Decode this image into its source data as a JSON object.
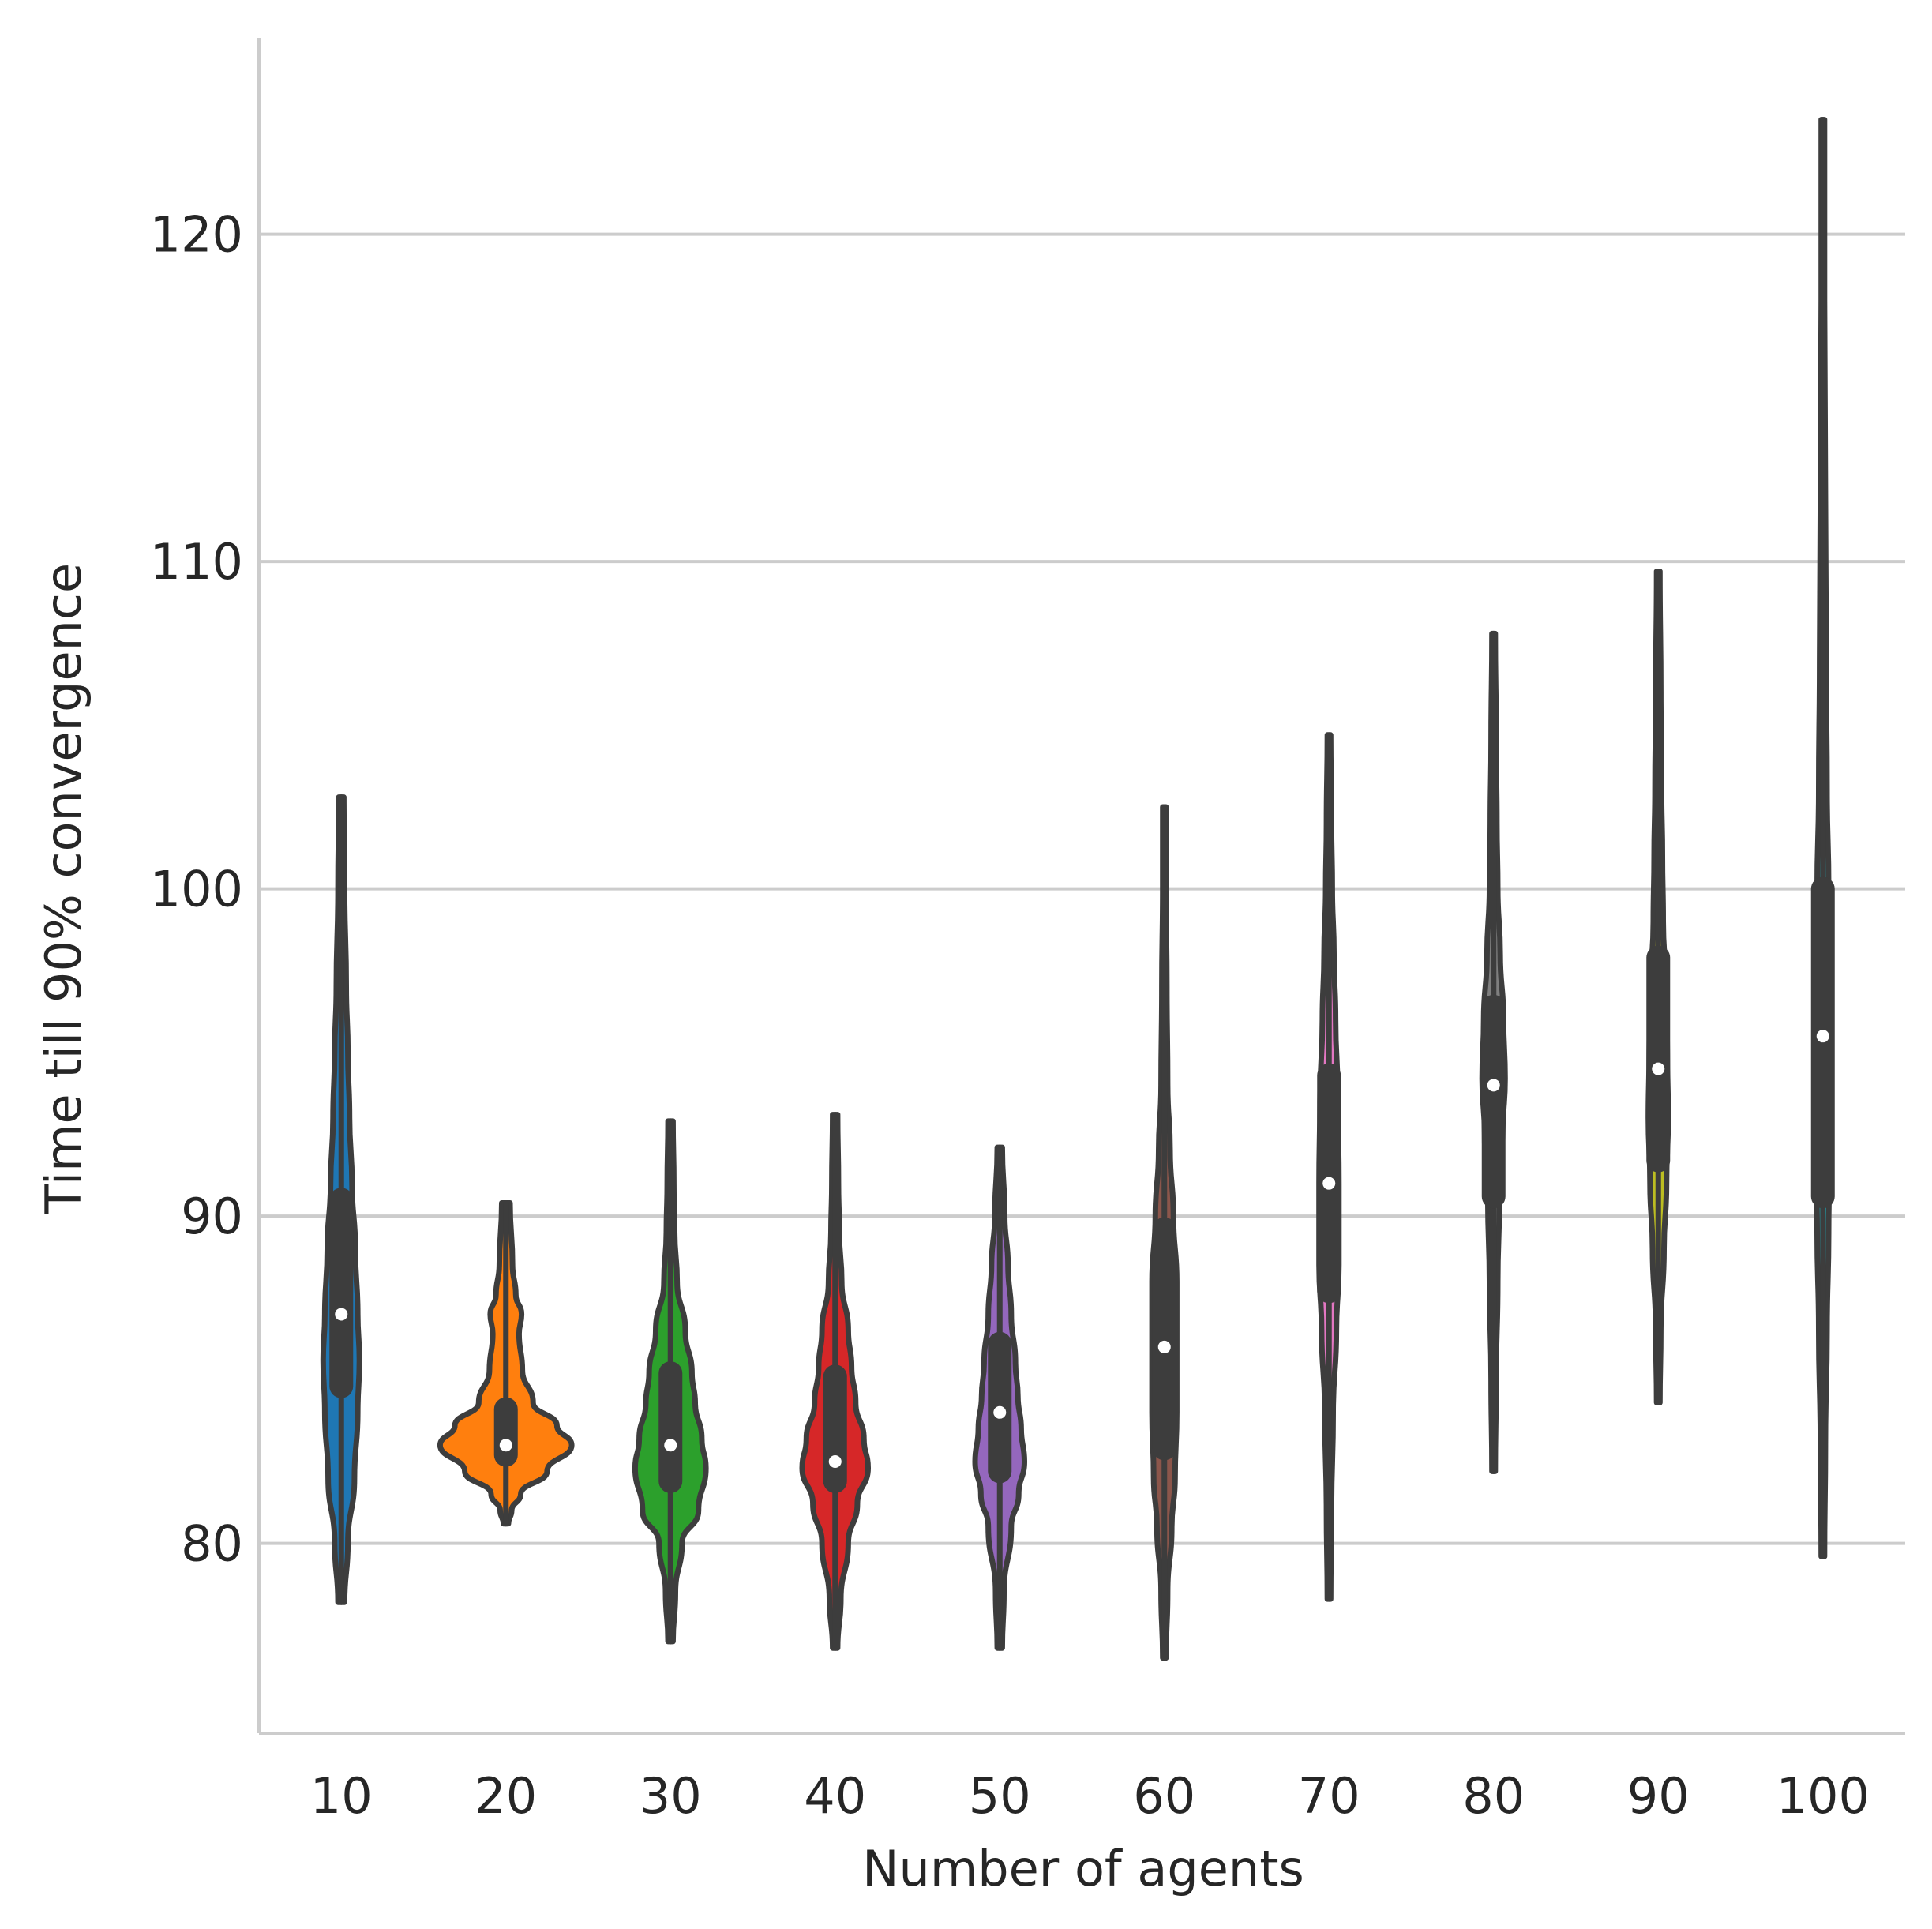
{
  "chart_data": {
    "type": "violin",
    "xlabel": "Number of agents",
    "ylabel": "Time till 90% convergence",
    "ylim": [
      74.2,
      126
    ],
    "yticks": [
      80,
      90,
      100,
      110,
      120
    ],
    "grid": "y",
    "categories": [
      "10",
      "20",
      "30",
      "40",
      "50",
      "60",
      "70",
      "80",
      "90",
      "100"
    ],
    "series": [
      {
        "category": "10",
        "color": "#1f77b4",
        "min": 78.2,
        "q1": 84.8,
        "median": 87.0,
        "q3": 90.5,
        "max": 102.8,
        "density": [
          [
            78.2,
            0.04
          ],
          [
            80,
            0.08
          ],
          [
            82,
            0.16
          ],
          [
            84,
            0.2
          ],
          [
            85.6,
            0.22
          ],
          [
            87,
            0.2
          ],
          [
            89,
            0.17
          ],
          [
            91,
            0.13
          ],
          [
            93,
            0.1
          ],
          [
            95,
            0.08
          ],
          [
            97,
            0.06
          ],
          [
            100,
            0.04
          ],
          [
            102.8,
            0.03
          ]
        ]
      },
      {
        "category": "20",
        "color": "#ff7f0e",
        "min": 80.6,
        "q1": 82.7,
        "median": 83.0,
        "q3": 84.1,
        "max": 90.4,
        "density": [
          [
            80.6,
            0.03
          ],
          [
            81,
            0.07
          ],
          [
            81.5,
            0.18
          ],
          [
            82.2,
            0.5
          ],
          [
            83,
            0.8
          ],
          [
            83.6,
            0.62
          ],
          [
            84.3,
            0.33
          ],
          [
            85.3,
            0.2
          ],
          [
            86.4,
            0.16
          ],
          [
            87,
            0.19
          ],
          [
            87.6,
            0.12
          ],
          [
            88.5,
            0.08
          ],
          [
            90.4,
            0.05
          ]
        ]
      },
      {
        "category": "30",
        "color": "#2ca02c",
        "min": 77.0,
        "q1": 81.9,
        "median": 83.0,
        "q3": 85.2,
        "max": 92.9,
        "density": [
          [
            77,
            0.03
          ],
          [
            78.5,
            0.06
          ],
          [
            80,
            0.14
          ],
          [
            81,
            0.34
          ],
          [
            82.3,
            0.43
          ],
          [
            83.2,
            0.38
          ],
          [
            84.3,
            0.3
          ],
          [
            85.2,
            0.26
          ],
          [
            86.5,
            0.18
          ],
          [
            88,
            0.08
          ],
          [
            89.5,
            0.05
          ],
          [
            91,
            0.04
          ],
          [
            92.9,
            0.03
          ]
        ]
      },
      {
        "category": "40",
        "color": "#d62728",
        "min": 76.8,
        "q1": 81.9,
        "median": 82.5,
        "q3": 85.1,
        "max": 93.1,
        "density": [
          [
            76.8,
            0.03
          ],
          [
            78.3,
            0.07
          ],
          [
            80,
            0.16
          ],
          [
            81.2,
            0.27
          ],
          [
            82.3,
            0.4
          ],
          [
            83.2,
            0.35
          ],
          [
            84.3,
            0.25
          ],
          [
            85.4,
            0.2
          ],
          [
            86.5,
            0.16
          ],
          [
            88,
            0.08
          ],
          [
            89.5,
            0.05
          ],
          [
            91,
            0.04
          ],
          [
            93.1,
            0.03
          ]
        ]
      },
      {
        "category": "50",
        "color": "#9467bd",
        "min": 76.8,
        "q1": 82.2,
        "median": 84.0,
        "q3": 86.1,
        "max": 92.1,
        "density": [
          [
            76.8,
            0.03
          ],
          [
            78.5,
            0.05
          ],
          [
            80.5,
            0.14
          ],
          [
            81.5,
            0.23
          ],
          [
            82.5,
            0.3
          ],
          [
            83.5,
            0.26
          ],
          [
            84.5,
            0.22
          ],
          [
            85.5,
            0.19
          ],
          [
            87,
            0.14
          ],
          [
            88.5,
            0.1
          ],
          [
            90,
            0.06
          ],
          [
            92.1,
            0.03
          ]
        ]
      },
      {
        "category": "60",
        "color": "#8c564b",
        "min": 76.5,
        "q1": 82.9,
        "median": 86.0,
        "q3": 89.6,
        "max": 102.5,
        "density": [
          [
            76.5,
            0.02
          ],
          [
            78.5,
            0.04
          ],
          [
            80.5,
            0.09
          ],
          [
            82,
            0.13
          ],
          [
            84,
            0.15
          ],
          [
            86,
            0.15
          ],
          [
            88,
            0.15
          ],
          [
            90,
            0.11
          ],
          [
            92,
            0.07
          ],
          [
            94,
            0.04
          ],
          [
            97,
            0.03
          ],
          [
            100,
            0.02
          ],
          [
            102.5,
            0.02
          ]
        ]
      },
      {
        "category": "70",
        "color": "#e377c2",
        "min": 78.3,
        "q1": 87.7,
        "median": 91.0,
        "q3": 94.3,
        "max": 104.7,
        "density": [
          [
            78.3,
            0.02
          ],
          [
            81,
            0.03
          ],
          [
            84,
            0.05
          ],
          [
            86.5,
            0.09
          ],
          [
            88.5,
            0.12
          ],
          [
            91,
            0.12
          ],
          [
            93.5,
            0.11
          ],
          [
            96,
            0.08
          ],
          [
            98,
            0.06
          ],
          [
            100,
            0.04
          ],
          [
            102,
            0.03
          ],
          [
            104.7,
            0.02
          ]
        ]
      },
      {
        "category": "80",
        "color": "#7f7f7f",
        "min": 82.2,
        "q1": 90.6,
        "median": 94.0,
        "q3": 96.4,
        "max": 107.8,
        "density": [
          [
            82.2,
            0.02
          ],
          [
            85,
            0.03
          ],
          [
            88,
            0.05
          ],
          [
            90.5,
            0.07
          ],
          [
            92.5,
            0.11
          ],
          [
            94.2,
            0.14
          ],
          [
            96,
            0.12
          ],
          [
            98,
            0.08
          ],
          [
            100,
            0.05
          ],
          [
            102,
            0.04
          ],
          [
            104.5,
            0.03
          ],
          [
            107.8,
            0.02
          ]
        ]
      },
      {
        "category": "90",
        "color": "#bcbd22",
        "min": 84.3,
        "q1": 91.7,
        "median": 94.5,
        "q3": 97.9,
        "max": 109.7,
        "density": [
          [
            84.3,
            0.02
          ],
          [
            86.5,
            0.03
          ],
          [
            89,
            0.07
          ],
          [
            91,
            0.1
          ],
          [
            93,
            0.12
          ],
          [
            95,
            0.11
          ],
          [
            97,
            0.09
          ],
          [
            99,
            0.06
          ],
          [
            101,
            0.05
          ],
          [
            103,
            0.04
          ],
          [
            106,
            0.03
          ],
          [
            109.7,
            0.02
          ]
        ]
      },
      {
        "category": "100",
        "color": "#17becf",
        "min": 79.6,
        "q1": 90.6,
        "median": 95.5,
        "q3": 100.0,
        "max": 123.5,
        "density": [
          [
            79.6,
            0.02
          ],
          [
            83,
            0.03
          ],
          [
            86.5,
            0.05
          ],
          [
            89.5,
            0.07
          ],
          [
            92.5,
            0.09
          ],
          [
            95,
            0.1
          ],
          [
            97.5,
            0.09
          ],
          [
            100,
            0.07
          ],
          [
            103,
            0.05
          ],
          [
            107,
            0.04
          ],
          [
            112,
            0.03
          ],
          [
            118,
            0.02
          ],
          [
            123.5,
            0.02
          ]
        ]
      }
    ]
  }
}
